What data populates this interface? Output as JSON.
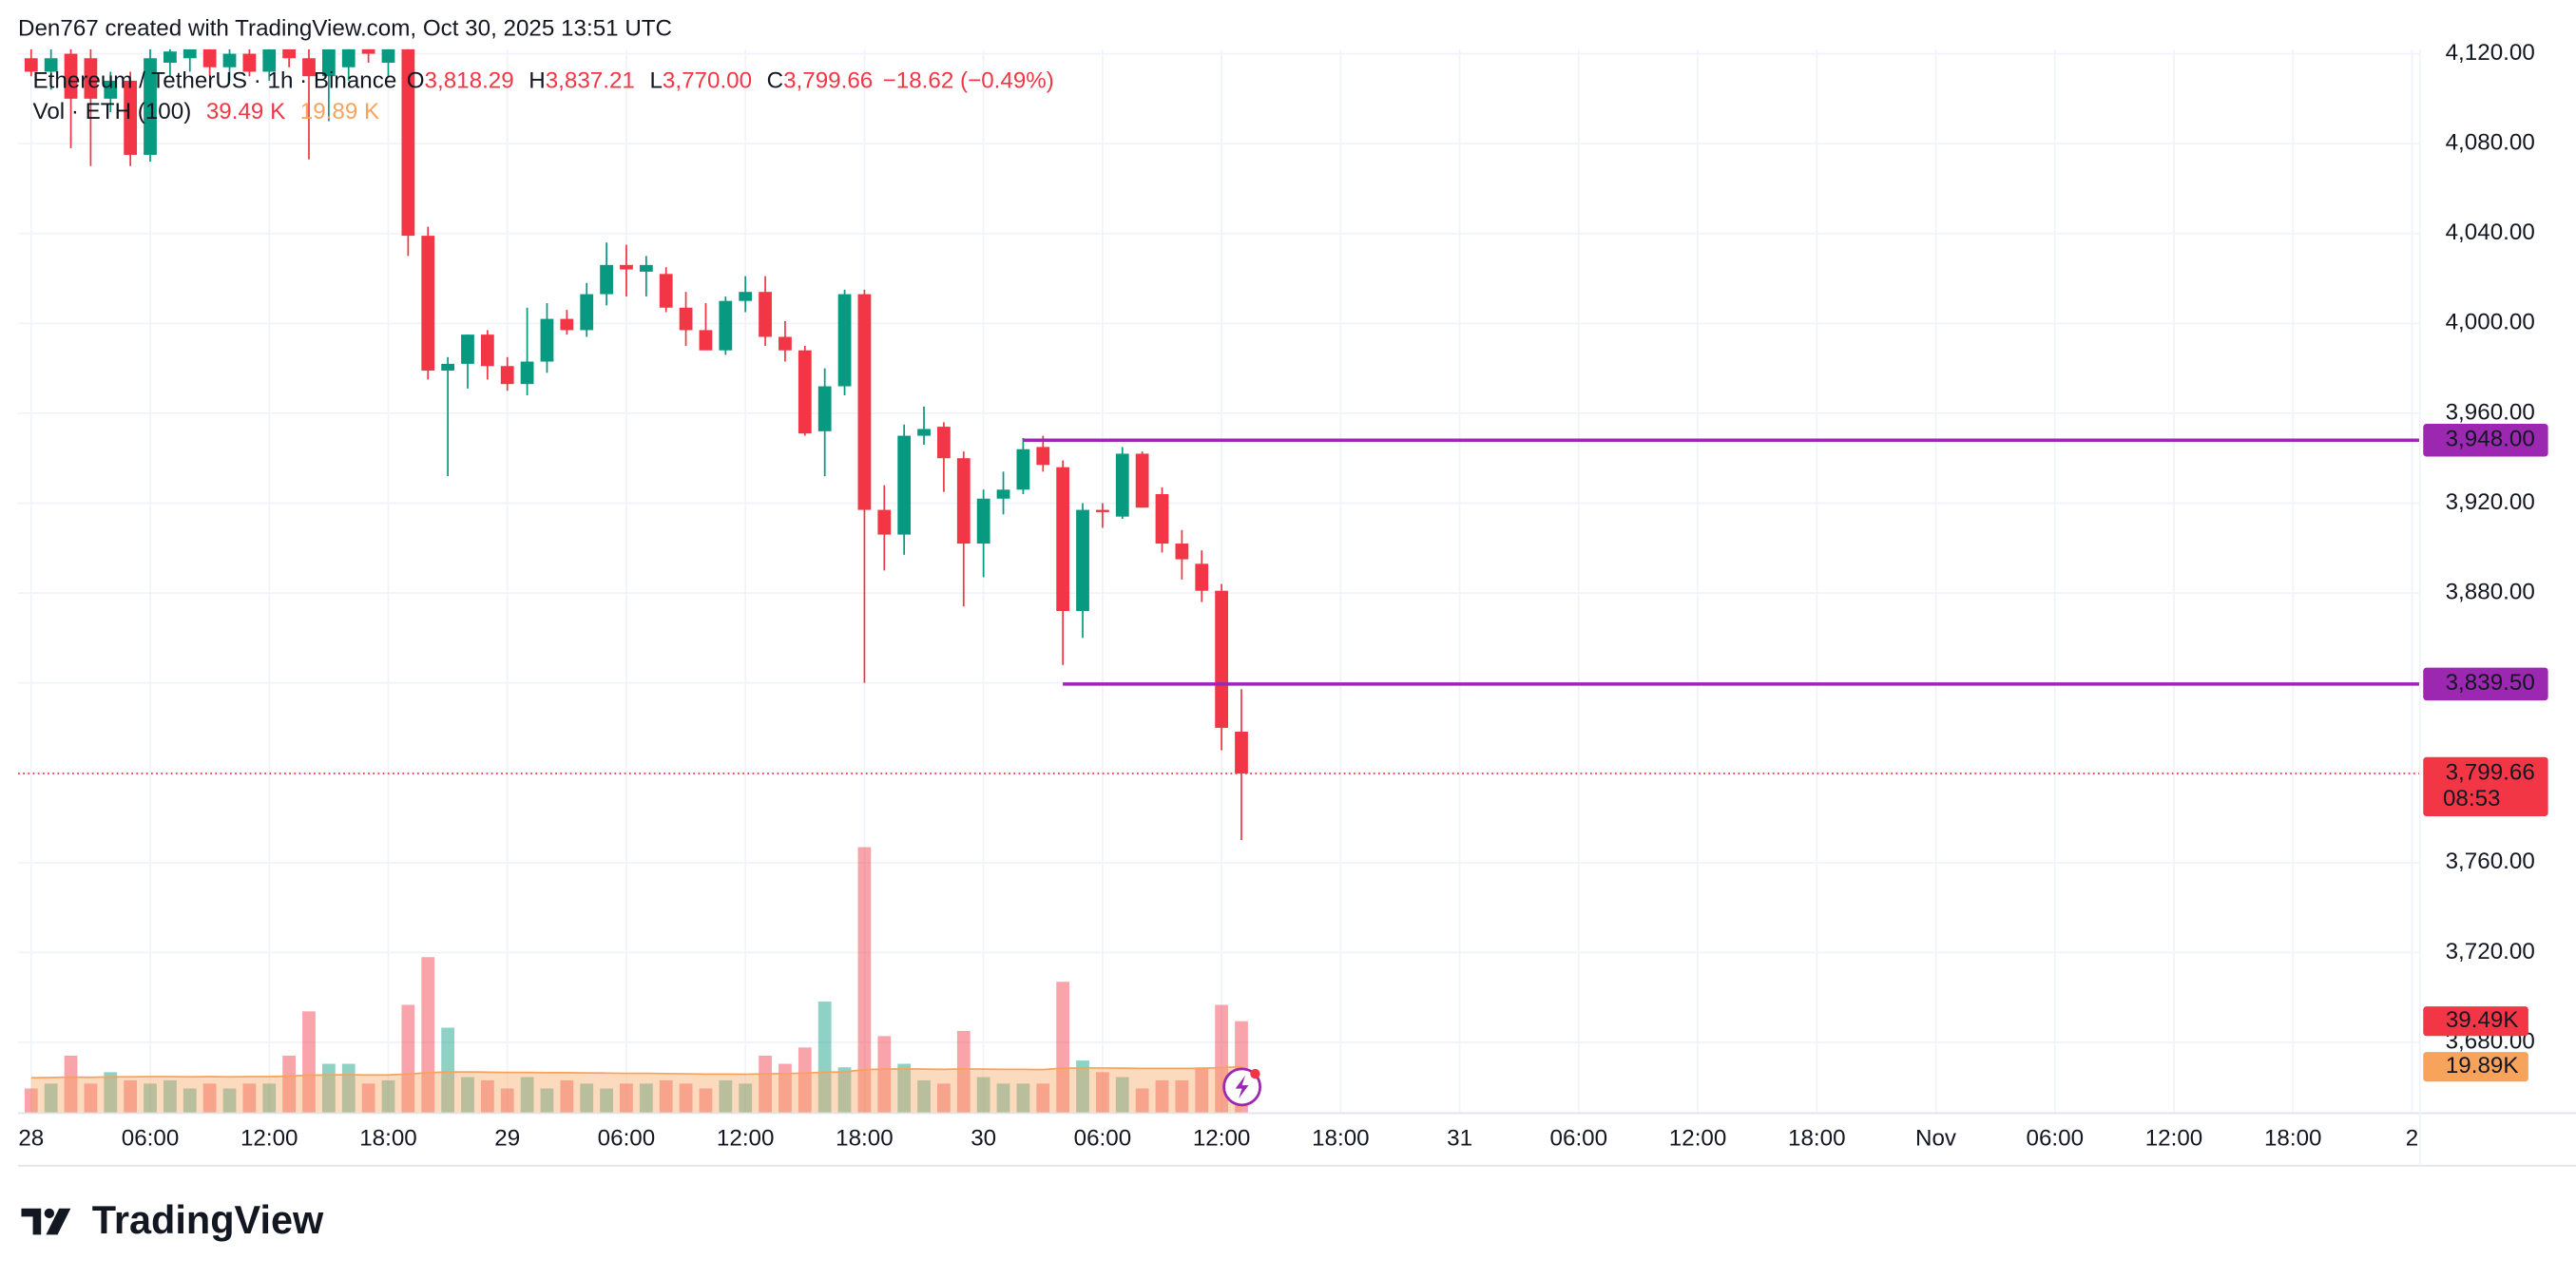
{
  "chart_data": {
    "type": "candlestick",
    "credit": "Den767 created with TradingView.com, Oct 30, 2025 13:51 UTC",
    "branding": "TradingView",
    "x": [
      0,
      1,
      2,
      3,
      4,
      5,
      6,
      7,
      8,
      9,
      10,
      11,
      12,
      13,
      14,
      15,
      16,
      17,
      18,
      19,
      20,
      21,
      22,
      23,
      24,
      25,
      26,
      27,
      28,
      29,
      30,
      31,
      32,
      33,
      34,
      35,
      36,
      37,
      38,
      39,
      40,
      41,
      42,
      43,
      44,
      45,
      46,
      47,
      48,
      49,
      50,
      51,
      52,
      53,
      54,
      55,
      56,
      57,
      58,
      59,
      60,
      61
    ],
    "xlim": [
      -0.66,
      120.4
    ],
    "xticks": [
      {
        "value": 0,
        "label": "28"
      },
      {
        "value": 6,
        "label": "06:00"
      },
      {
        "value": 12,
        "label": "12:00"
      },
      {
        "value": 18,
        "label": "18:00"
      },
      {
        "value": 24,
        "label": "29"
      },
      {
        "value": 30,
        "label": "06:00"
      },
      {
        "value": 36,
        "label": "12:00"
      },
      {
        "value": 42,
        "label": "18:00"
      },
      {
        "value": 48,
        "label": "30"
      },
      {
        "value": 54,
        "label": "06:00"
      },
      {
        "value": 60,
        "label": "12:00"
      },
      {
        "value": 66,
        "label": "18:00"
      },
      {
        "value": 72,
        "label": "31"
      },
      {
        "value": 78,
        "label": "06:00"
      },
      {
        "value": 84,
        "label": "12:00"
      },
      {
        "value": 90,
        "label": "18:00"
      },
      {
        "value": 96,
        "label": "Nov"
      },
      {
        "value": 102,
        "label": "06:00"
      },
      {
        "value": 108,
        "label": "12:00"
      },
      {
        "value": 114,
        "label": "18:00"
      },
      {
        "value": 120,
        "label": "2"
      }
    ],
    "ylim": [
      3648.5,
      4122
    ],
    "yticks": [
      {
        "value": 3680,
        "label": "3,680.00"
      },
      {
        "value": 3720,
        "label": "3,720.00"
      },
      {
        "value": 3760,
        "label": "3,760.00"
      },
      {
        "value": 3800,
        "label": "3,800.00"
      },
      {
        "value": 3840,
        "label": "3,840.00"
      },
      {
        "value": 3880,
        "label": "3,880.00"
      },
      {
        "value": 3920,
        "label": "3,920.00"
      },
      {
        "value": 3960,
        "label": "3,960.00"
      },
      {
        "value": 4000,
        "label": "4,000.00"
      },
      {
        "value": 4040,
        "label": "4,040.00"
      },
      {
        "value": 4080,
        "label": "4,080.00"
      },
      {
        "value": 4120,
        "label": "4,120.00"
      }
    ],
    "grid": true,
    "series": [
      {
        "name": "Ethereum / TetherUS · 1h · Binance",
        "up_color": "#089981",
        "down_color": "#f23645",
        "open": [
          4118,
          4112,
          4120,
          4118,
          4100,
          4108,
          4075,
          4116,
          4118,
          4122,
          4114,
          4120,
          4112,
          4122,
          4118,
          4110,
          4114,
          4123,
          4116,
          4124,
          4039,
          3979,
          3982,
          3995,
          3981,
          3973,
          3983,
          4002,
          3997,
          4013,
          4026,
          4023,
          4022,
          4007,
          3997,
          3988,
          4010,
          4014,
          3994,
          3988,
          3952,
          3972,
          4013,
          3917,
          3906,
          3950,
          3954,
          3940,
          3902,
          3922,
          3926,
          3945,
          3936,
          3872,
          3917,
          3914,
          3942,
          3924,
          3902,
          3893,
          3881,
          3818.29
        ],
        "high": [
          4128,
          4122,
          4126,
          4124,
          4112,
          4112,
          4126,
          4127,
          4127,
          4128,
          4124,
          4126,
          4125,
          4130,
          4126,
          4128,
          4126,
          4130,
          4128,
          4128,
          4043,
          3985,
          3995,
          3997,
          3985,
          4007,
          4009,
          4006,
          4018,
          4036,
          4035,
          4030,
          4025,
          4014,
          4009,
          4012,
          4021,
          4021,
          4001,
          3990,
          3980,
          4015,
          4015,
          3928,
          3955,
          3963,
          3956,
          3943,
          3926,
          3934,
          3949,
          3950,
          3939,
          3920,
          3920,
          3945,
          3943,
          3927,
          3908,
          3899,
          3884,
          3837.21
        ],
        "low": [
          4110,
          4104,
          4078,
          4070,
          4094,
          4070,
          4072,
          4110,
          4112,
          4110,
          4108,
          4110,
          4108,
          4114,
          4073,
          4090,
          4108,
          4116,
          4110,
          4030,
          3975,
          3932,
          3971,
          3975,
          3970,
          3968,
          3978,
          3995,
          3994,
          4008,
          4012,
          4012,
          4005,
          3990,
          3990,
          3986,
          4005,
          3990,
          3983,
          3950,
          3932,
          3968,
          3840,
          3890,
          3897,
          3946,
          3925,
          3874,
          3887,
          3915,
          3924,
          3934,
          3848,
          3860,
          3909,
          3913,
          3918,
          3898,
          3886,
          3876,
          3810,
          3770
        ],
        "close": [
          4112,
          4118,
          4100,
          4100,
          4108,
          4075,
          4118,
          4121,
          4122,
          4114,
          4120,
          4112,
          4122,
          4118,
          4110,
          4122,
          4123,
          4120,
          4124,
          4039,
          3979,
          3982,
          3995,
          3981,
          3973,
          3983,
          4002,
          3997,
          4013,
          4026,
          4024,
          4026,
          4007,
          3997,
          3988,
          4010,
          4014,
          3994,
          3988,
          3951,
          3972,
          4013,
          3917,
          3906,
          3950,
          3953,
          3940,
          3902,
          3922,
          3926,
          3944,
          3937,
          3872,
          3917,
          3916,
          3942,
          3918,
          3902,
          3895,
          3881,
          3820,
          3799.66
        ],
        "ohlc_keys": [
          "O",
          "H",
          "L",
          "C"
        ],
        "last_labels": [
          "3,818.29",
          "3,837.21",
          "3,770.00",
          "3,799.66"
        ],
        "change_label": "−18.62 (−0.49%)"
      }
    ],
    "volume": {
      "name": "Vol · ETH (100)",
      "ylim": [
        0,
        160
      ],
      "values": [
        10.6,
        12.7,
        24.7,
        12.7,
        17.6,
        14.1,
        12.7,
        14.1,
        10.6,
        12.7,
        10.6,
        12.7,
        12.7,
        24.7,
        43.7,
        21.2,
        21.2,
        12.7,
        14.1,
        46.5,
        67.0,
        36.7,
        15.5,
        14.1,
        10.6,
        15.5,
        10.6,
        14.1,
        12.7,
        10.6,
        12.7,
        12.7,
        14.1,
        12.7,
        10.6,
        14.1,
        12.7,
        24.7,
        21.2,
        28.2,
        47.9,
        19.7,
        114.2,
        33.1,
        21.2,
        14.1,
        12.7,
        35.3,
        15.5,
        12.7,
        12.7,
        12.7,
        56.4,
        22.6,
        17.6,
        15.5,
        10.6,
        14.1,
        14.1,
        19.7,
        46.5,
        39.49
      ],
      "ma": [
        15.2,
        15.3,
        15.5,
        15.4,
        15.6,
        15.6,
        15.7,
        15.7,
        15.6,
        15.7,
        15.6,
        15.7,
        15.7,
        15.9,
        16.3,
        16.4,
        16.5,
        16.4,
        16.4,
        16.8,
        17.4,
        17.7,
        17.7,
        17.6,
        17.5,
        17.5,
        17.4,
        17.4,
        17.3,
        17.2,
        17.1,
        17.1,
        17.0,
        16.9,
        16.8,
        16.8,
        16.7,
        16.9,
        17.0,
        17.2,
        17.6,
        17.7,
        18.7,
        18.9,
        19.0,
        18.9,
        18.8,
        19.0,
        18.9,
        18.8,
        18.8,
        18.7,
        19.3,
        19.4,
        19.4,
        19.3,
        19.2,
        19.2,
        19.2,
        19.2,
        19.6,
        19.89
      ],
      "ma_color": "#f7a35c",
      "legend_labels": [
        "39.49 K",
        "19.89 K"
      ],
      "last_label": "39.49K",
      "ma_last_label": "19.89K"
    },
    "hlines": [
      {
        "value": 3948,
        "label": "3,948.00",
        "start": 50,
        "color": "#9c27b0"
      },
      {
        "value": 3839.5,
        "label": "3,839.50",
        "start": 52,
        "color": "#9c27b0"
      }
    ],
    "last_price": {
      "value": 3799.66,
      "label": "3,799.66",
      "countdown": "08:53",
      "color": "#f23645"
    }
  }
}
